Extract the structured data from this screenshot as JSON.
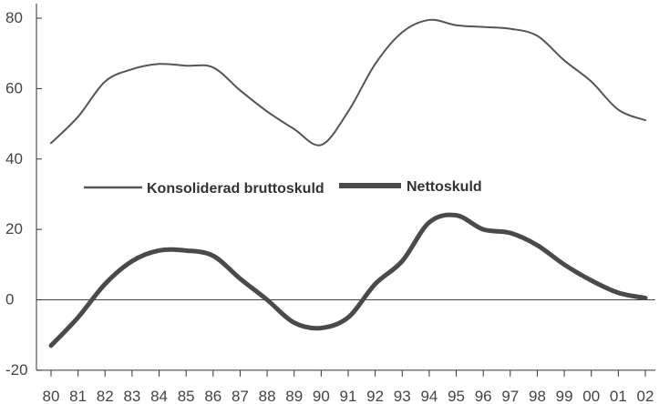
{
  "chart_data": {
    "type": "line",
    "title": "",
    "xlabel": "",
    "ylabel": "",
    "categories": [
      "80",
      "81",
      "82",
      "83",
      "84",
      "85",
      "86",
      "87",
      "88",
      "89",
      "90",
      "91",
      "92",
      "93",
      "94",
      "95",
      "96",
      "97",
      "98",
      "99",
      "00",
      "01",
      "02"
    ],
    "ylim": [
      -20,
      84
    ],
    "yticks": [
      -20,
      0,
      20,
      40,
      60,
      80
    ],
    "zero_line": true,
    "grid": false,
    "legend_position": "middle-left",
    "series": [
      {
        "name": "Konsoliderad bruttoskuld",
        "style": "thin",
        "color": "#555555",
        "values": [
          44.5,
          52,
          62,
          65.5,
          67,
          66.5,
          66,
          59.5,
          53.5,
          48.5,
          44,
          53.5,
          67,
          76,
          79.5,
          78,
          77.5,
          77,
          75,
          68,
          62,
          54,
          51
        ]
      },
      {
        "name": "Nettoskuld",
        "style": "thick",
        "color": "#4a4a4a",
        "values": [
          -13,
          -5,
          4.5,
          11,
          14,
          14,
          12.5,
          6,
          0,
          -6.5,
          -8,
          -5,
          4.5,
          11,
          22,
          24,
          20,
          19,
          15.5,
          10,
          5.5,
          2,
          0.5
        ]
      }
    ]
  }
}
